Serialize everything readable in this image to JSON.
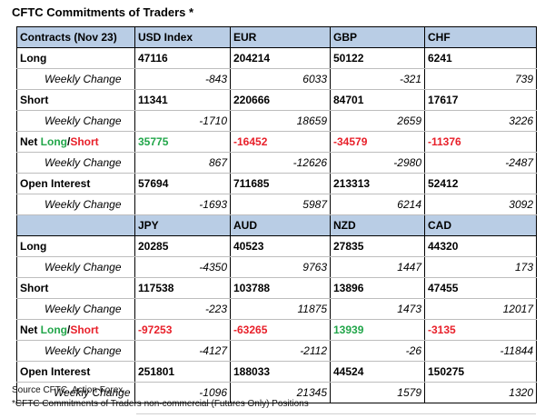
{
  "title": "CFTC Commitments of Traders *",
  "block1": {
    "header": [
      "Contracts (Nov 23)",
      "USD Index",
      "EUR",
      "GBP",
      "CHF"
    ],
    "rows": [
      {
        "label": "Long",
        "values": [
          "47116",
          "204214",
          "50122",
          "6241"
        ]
      },
      {
        "label": "Weekly Change",
        "values": [
          "-843",
          "6033",
          "-321",
          "739"
        ]
      },
      {
        "label": "Short",
        "values": [
          "11341",
          "220666",
          "84701",
          "17617"
        ]
      },
      {
        "label": "Weekly Change",
        "values": [
          "-1710",
          "18659",
          "2659",
          "3226"
        ]
      },
      {
        "label_prefix": "Net ",
        "label_long": "Long",
        "label_sep": "/",
        "label_short": "Short",
        "values": [
          "35775",
          "-16452",
          "-34579",
          "-11376"
        ]
      },
      {
        "label": "Weekly Change",
        "values": [
          "867",
          "-12626",
          "-2980",
          "-2487"
        ]
      },
      {
        "label": "Open Interest",
        "values": [
          "57694",
          "711685",
          "213313",
          "52412"
        ]
      },
      {
        "label": "Weekly Change",
        "values": [
          "-1693",
          "5987",
          "6214",
          "3092"
        ]
      }
    ]
  },
  "block2": {
    "header": [
      "",
      "JPY",
      "AUD",
      "NZD",
      "CAD"
    ],
    "rows": [
      {
        "label": "Long",
        "values": [
          "20285",
          "40523",
          "27835",
          "44320"
        ]
      },
      {
        "label": "Weekly Change",
        "values": [
          "-4350",
          "9763",
          "1447",
          "173"
        ]
      },
      {
        "label": "Short",
        "values": [
          "117538",
          "103788",
          "13896",
          "47455"
        ]
      },
      {
        "label": "Weekly Change",
        "values": [
          "-223",
          "11875",
          "1473",
          "12017"
        ]
      },
      {
        "label_prefix": "Net ",
        "label_long": "Long",
        "label_sep": "/",
        "label_short": "Short",
        "values": [
          "-97253",
          "-63265",
          "13939",
          "-3135"
        ]
      },
      {
        "label": "Weekly Change",
        "values": [
          "-4127",
          "-2112",
          "-26",
          "-11844"
        ]
      },
      {
        "label": "Open Interest",
        "values": [
          "251801",
          "188033",
          "44524",
          "150275"
        ]
      },
      {
        "label": "Weekly Change",
        "values": [
          "-1096",
          "21345",
          "1579",
          "1320"
        ]
      }
    ]
  },
  "colors": {
    "header_bg": "#b9cde5",
    "positive": "#22a64a",
    "negative": "#e8202a"
  },
  "footnotes": {
    "source": "Source CFTC, Action Forex",
    "note": "*CFTC Commitments of Traders non-commercial (Futures Only) Positions"
  }
}
